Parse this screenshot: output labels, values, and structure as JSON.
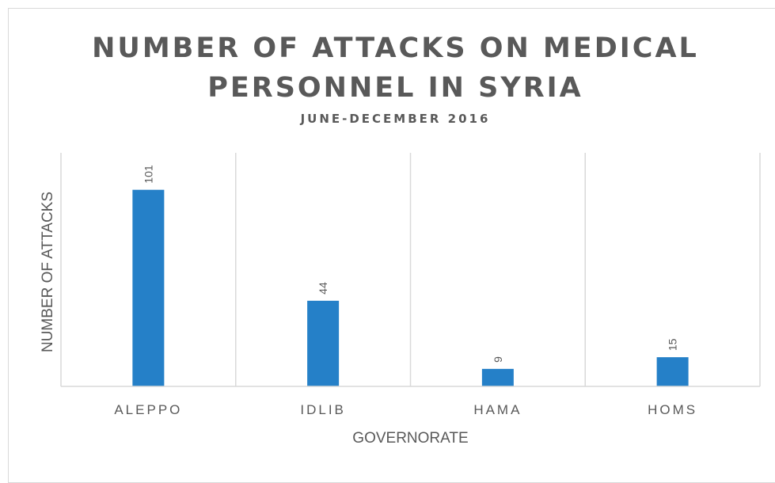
{
  "chart_data": {
    "type": "bar",
    "title": "NUMBER OF ATTACKS ON MEDICAL PERSONNEL IN SYRIA",
    "subtitle": "JUNE-DECEMBER 2016",
    "xlabel": "GOVERNORATE",
    "ylabel": "NUMBER OF ATTACKS",
    "categories": [
      "ALEPPO",
      "IDLIB",
      "HAMA",
      "HOMS"
    ],
    "values": [
      101,
      44,
      9,
      15
    ],
    "data_labels": [
      "101",
      "44",
      "9",
      "15"
    ],
    "ylim": [
      0,
      120
    ],
    "grid": "vertical separators between categories",
    "legend": "none",
    "bar_color": "#2580c8",
    "gridline_color": "#d9d9d9",
    "text_color": "#595959"
  }
}
